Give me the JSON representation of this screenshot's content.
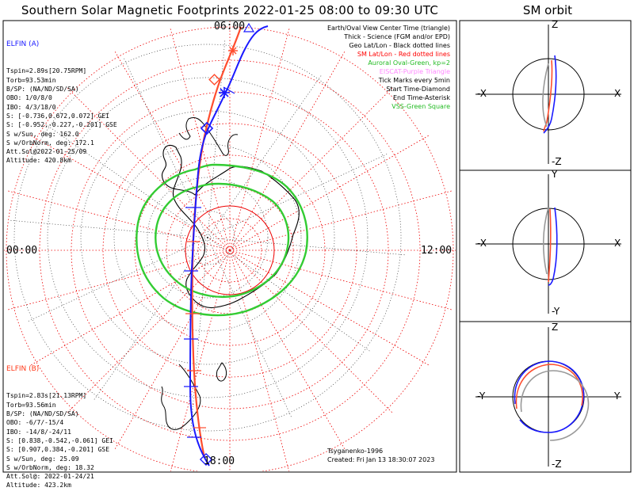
{
  "title": "Southern Solar Magnetic Footprints 2022-01-25 08:00 to 09:30 UTC",
  "orbit_title": "SM orbit",
  "time_labels": {
    "top": "06:00",
    "bottom": "18:00",
    "left": "00:00",
    "right": "12:00"
  },
  "elfin_a": {
    "name": "ELFIN (A)",
    "color": "#1a1aff",
    "lines": [
      "Tspin=2.89s[20.75RPM]",
      "Torb=93.53min",
      "B/SP: (NA/ND/SD/SA)",
      "OBO: 1/0/8/0",
      "IBO: 4/3/18/0",
      "S: [-0.736,0.672,0.072] GEI",
      "S: [-0.952,-0.227,-0.201] GSE",
      "S w/Sun, deg: 162.0",
      "S w/OrbNorm, deg: 172.1",
      "Att.Sol@2022-01-25/09",
      "Altitude: 420.8km"
    ]
  },
  "elfin_b": {
    "name": "ELFIN (B)",
    "color": "#ff3a1a",
    "lines": [
      "Tspin=2.83s[21.13RPM]",
      "Torb=93.56min",
      "B/SP: (NA/ND/SD/SA)",
      "OBO: -6/7/-15/4",
      "IBO: -14/8/-24/11",
      "S: [0.838,-0.542,-0.061] GEI",
      "S: [0.907,0.384,-0.201] GSE",
      "S w/Sun, deg: 25.09",
      "S w/OrbNorm, deg: 18.32",
      "Att.Sol@: 2022-01-24/21",
      "Altitude: 423.2km"
    ]
  },
  "legend": [
    {
      "text": "Earth/Oval View Center Time (triangle)",
      "color": "#000000"
    },
    {
      "text": "Thick - Science (FGM and/or EPD)",
      "color": "#000000"
    },
    {
      "text": "Geo Lat/Lon - Black dotted lines",
      "color": "#000000"
    },
    {
      "text": "SM Lat/Lon - Red dotted lines",
      "color": "#ff0000"
    },
    {
      "text": "Auroral Oval-Green, kp=2",
      "color": "#22bb22"
    },
    {
      "text": "EISCAT-Purple Triangle",
      "color": "#ff88ff"
    },
    {
      "text": "Tick Marks every 5min",
      "color": "#000000"
    },
    {
      "text": "Start Time-Diamond",
      "color": "#000000"
    },
    {
      "text": "End Time-Asterisk",
      "color": "#000000"
    },
    {
      "text": "VSS-Green Square",
      "color": "#22bb22"
    }
  ],
  "credits": {
    "author": "Tsyganenko-1996",
    "created": "Created: Fri Jan 13 18:30:07 2023"
  },
  "orbit_panels": [
    {
      "top": "Z",
      "bottom": "-Z",
      "left": "-X",
      "right": "X"
    },
    {
      "top": "Y",
      "bottom": "-Y",
      "left": "-X",
      "right": "X"
    },
    {
      "top": "Z",
      "bottom": "-Z",
      "left": "-Y",
      "right": "Y"
    }
  ],
  "colors": {
    "oval": "#22cc22",
    "sm_grid": "#ff0000",
    "geo_grid": "#000000"
  }
}
